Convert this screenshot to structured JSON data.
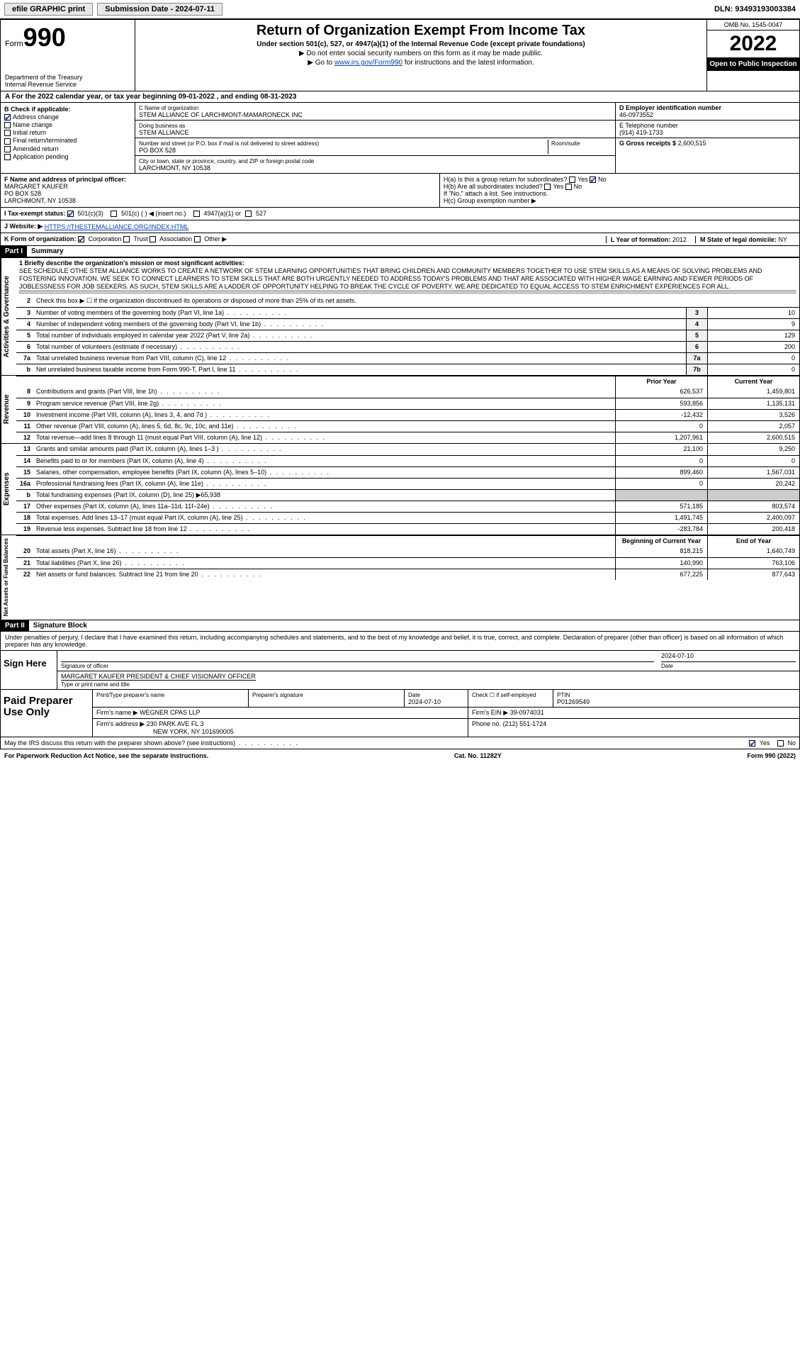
{
  "topbar": {
    "efile": "efile GRAPHIC print",
    "submission_label": "Submission Date - 2024-07-11",
    "dln": "DLN: 93493193003384"
  },
  "header": {
    "form_word": "Form",
    "form_num": "990",
    "dept": "Department of the Treasury",
    "irs": "Internal Revenue Service",
    "title": "Return of Organization Exempt From Income Tax",
    "sub": "Under section 501(c), 527, or 4947(a)(1) of the Internal Revenue Code (except private foundations)",
    "note1": "▶ Do not enter social security numbers on this form as it may be made public.",
    "note2_pre": "▶ Go to ",
    "note2_link": "www.irs.gov/Form990",
    "note2_post": " for instructions and the latest information.",
    "omb": "OMB No. 1545-0047",
    "year": "2022",
    "inspect": "Open to Public Inspection"
  },
  "row_a": "A For the 2022 calendar year, or tax year beginning 09-01-2022  , and ending 08-31-2023",
  "section_b": {
    "label": "B Check if applicable:",
    "items": [
      {
        "label": "Address change",
        "checked": true
      },
      {
        "label": "Name change",
        "checked": false
      },
      {
        "label": "Initial return",
        "checked": false
      },
      {
        "label": "Final return/terminated",
        "checked": false
      },
      {
        "label": "Amended return",
        "checked": false
      },
      {
        "label": "Application pending",
        "checked": false
      }
    ]
  },
  "section_c": {
    "name_lbl": "C Name of organization",
    "name": "STEM ALLIANCE OF LARCHMONT-MAMARONECK INC",
    "dba_lbl": "Doing business as",
    "dba": "STEM ALLIANCE",
    "addr_lbl": "Number and street (or P.O. box if mail is not delivered to street address)",
    "addr": "PO BOX 528",
    "room_lbl": "Room/suite",
    "city_lbl": "City or town, state or province, country, and ZIP or foreign postal code",
    "city": "LARCHMONT, NY  10538"
  },
  "section_d": {
    "lbl": "D Employer identification number",
    "val": "46-0973552"
  },
  "section_e": {
    "lbl": "E Telephone number",
    "val": "(914) 419-1733"
  },
  "section_g": {
    "lbl": "G Gross receipts $",
    "val": "2,600,515"
  },
  "section_f": {
    "lbl": "F  Name and address of principal officer:",
    "name": "MARGARET KAUFER",
    "addr1": "PO BOX 528",
    "addr2": "LARCHMONT, NY  10538"
  },
  "section_h": {
    "a": "H(a)  Is this a group return for subordinates?",
    "a_yes": "Yes",
    "a_no": "No",
    "b": "H(b)  Are all subordinates included?",
    "b_yes": "Yes",
    "b_no": "No",
    "b_note": "If \"No,\" attach a list. See instructions.",
    "c": "H(c)  Group exemption number ▶"
  },
  "section_i": {
    "lbl": "I  Tax-exempt status:",
    "opts": [
      "501(c)(3)",
      "501(c) (  ) ◀ (insert no.)",
      "4947(a)(1) or",
      "527"
    ]
  },
  "section_j": {
    "lbl": "J  Website: ▶",
    "val": "HTTPS://THESTEMALLIANCE.ORG/INDEX.HTML"
  },
  "section_k": {
    "lbl": "K Form of organization:",
    "opts": [
      "Corporation",
      "Trust",
      "Association",
      "Other ▶"
    ]
  },
  "section_l": {
    "lbl": "L Year of formation:",
    "val": "2012"
  },
  "section_m": {
    "lbl": "M State of legal domicile:",
    "val": "NY"
  },
  "part1": {
    "tag": "Part I",
    "title": "Summary"
  },
  "mission": {
    "lbl": "1  Briefly describe the organization's mission or most significant activities:",
    "text": "SEE SCHEDULE OTHE STEM ALLIANCE WORKS TO CREATE A NETWORK OF STEM LEARNING OPPORTUNITIES THAT BRING CHILDREN AND COMMUNITY MEMBERS TOGETHER TO USE STEM SKILLS AS A MEANS OF SOLVING PROBLEMS AND FOSTERING INNOVATION. WE SEEK TO CONNECT LEARNERS TO STEM SKILLS THAT ARE BOTH URGENTLY NEEDED TO ADDRESS TODAY'S PROBLEMS AND THAT ARE ASSOCIATED WITH HIGHER WAGE EARNING AND FEWER PERIODS OF JOBLESSNESS FOR JOB SEEKERS. AS SUCH, STEM SKILLS ARE A LADDER OF OPPORTUNITY HELPING TO BREAK THE CYCLE OF POVERTY. WE ARE DEDICATED TO EQUAL ACCESS TO STEM ENRICHMENT EXPERIENCES FOR ALL."
  },
  "gov_lines": [
    {
      "n": "2",
      "t": "Check this box ▶ ☐ if the organization discontinued its operations or disposed of more than 25% of its net assets."
    },
    {
      "n": "3",
      "t": "Number of voting members of the governing body (Part VI, line 1a)",
      "box": "3",
      "v": "10"
    },
    {
      "n": "4",
      "t": "Number of independent voting members of the governing body (Part VI, line 1b)",
      "box": "4",
      "v": "9"
    },
    {
      "n": "5",
      "t": "Total number of individuals employed in calendar year 2022 (Part V, line 2a)",
      "box": "5",
      "v": "129"
    },
    {
      "n": "6",
      "t": "Total number of volunteers (estimate if necessary)",
      "box": "6",
      "v": "200"
    },
    {
      "n": "7a",
      "t": "Total unrelated business revenue from Part VIII, column (C), line 12",
      "box": "7a",
      "v": "0"
    },
    {
      "n": "b",
      "t": "Net unrelated business taxable income from Form 990-T, Part I, line 11",
      "box": "7b",
      "v": "0"
    }
  ],
  "col_hdrs": {
    "prior": "Prior Year",
    "current": "Current Year"
  },
  "revenue": [
    {
      "n": "8",
      "t": "Contributions and grants (Part VIII, line 1h)",
      "p": "626,537",
      "c": "1,459,801"
    },
    {
      "n": "9",
      "t": "Program service revenue (Part VIII, line 2g)",
      "p": "593,856",
      "c": "1,135,131"
    },
    {
      "n": "10",
      "t": "Investment income (Part VIII, column (A), lines 3, 4, and 7d )",
      "p": "-12,432",
      "c": "3,526"
    },
    {
      "n": "11",
      "t": "Other revenue (Part VIII, column (A), lines 5, 6d, 8c, 9c, 10c, and 11e)",
      "p": "0",
      "c": "2,057"
    },
    {
      "n": "12",
      "t": "Total revenue—add lines 8 through 11 (must equal Part VIII, column (A), line 12)",
      "p": "1,207,961",
      "c": "2,600,515"
    }
  ],
  "expenses": [
    {
      "n": "13",
      "t": "Grants and similar amounts paid (Part IX, column (A), lines 1–3 )",
      "p": "21,100",
      "c": "9,250"
    },
    {
      "n": "14",
      "t": "Benefits paid to or for members (Part IX, column (A), line 4)",
      "p": "0",
      "c": "0"
    },
    {
      "n": "15",
      "t": "Salaries, other compensation, employee benefits (Part IX, column (A), lines 5–10)",
      "p": "899,460",
      "c": "1,567,031"
    },
    {
      "n": "16a",
      "t": "Professional fundraising fees (Part IX, column (A), line 11e)",
      "p": "0",
      "c": "20,242"
    },
    {
      "n": "b",
      "t": "Total fundraising expenses (Part IX, column (D), line 25) ▶65,938",
      "shade": true
    },
    {
      "n": "17",
      "t": "Other expenses (Part IX, column (A), lines 11a–11d, 11f–24e)",
      "p": "571,185",
      "c": "803,574"
    },
    {
      "n": "18",
      "t": "Total expenses. Add lines 13–17 (must equal Part IX, column (A), line 25)",
      "p": "1,491,745",
      "c": "2,400,097"
    },
    {
      "n": "19",
      "t": "Revenue less expenses. Subtract line 18 from line 12",
      "p": "-283,784",
      "c": "200,418"
    }
  ],
  "net_hdrs": {
    "begin": "Beginning of Current Year",
    "end": "End of Year"
  },
  "netassets": [
    {
      "n": "20",
      "t": "Total assets (Part X, line 16)",
      "p": "818,215",
      "c": "1,640,749"
    },
    {
      "n": "21",
      "t": "Total liabilities (Part X, line 26)",
      "p": "140,990",
      "c": "763,106"
    },
    {
      "n": "22",
      "t": "Net assets or fund balances. Subtract line 21 from line 20",
      "p": "677,225",
      "c": "877,643"
    }
  ],
  "vlabels": {
    "gov": "Activities & Governance",
    "rev": "Revenue",
    "exp": "Expenses",
    "net": "Net Assets or Fund Balances"
  },
  "part2": {
    "tag": "Part II",
    "title": "Signature Block"
  },
  "penalty": "Under penalties of perjury, I declare that I have examined this return, including accompanying schedules and statements, and to the best of my knowledge and belief, it is true, correct, and complete. Declaration of preparer (other than officer) is based on all information of which preparer has any knowledge.",
  "sign": {
    "label": "Sign Here",
    "sig_lbl": "Signature of officer",
    "date_lbl": "Date",
    "date": "2024-07-10",
    "name": "MARGARET KAUFER  PRESIDENT & CHIEF VISIONARY OFFICER",
    "name_lbl": "Type or print name and title"
  },
  "prep": {
    "label": "Paid Preparer Use Only",
    "h1": "Print/Type preparer's name",
    "h2": "Preparer's signature",
    "h3": "Date",
    "h4": "Check ☐ if self-employed",
    "h5": "PTIN",
    "date": "2024-07-10",
    "ptin": "P01269549",
    "firm_lbl": "Firm's name   ▶",
    "firm": "WEGNER CPAS LLP",
    "ein_lbl": "Firm's EIN ▶",
    "ein": "39-0974031",
    "addr_lbl": "Firm's address ▶",
    "addr1": "230 PARK AVE FL 3",
    "addr2": "NEW YORK, NY  101690005",
    "phone_lbl": "Phone no.",
    "phone": "(212) 551-1724"
  },
  "discuss": {
    "q": "May the IRS discuss this return with the preparer shown above? (see instructions)",
    "yes": "Yes",
    "no": "No"
  },
  "footer": {
    "left": "For Paperwork Reduction Act Notice, see the separate instructions.",
    "mid": "Cat. No. 11282Y",
    "right": "Form 990 (2022)"
  }
}
